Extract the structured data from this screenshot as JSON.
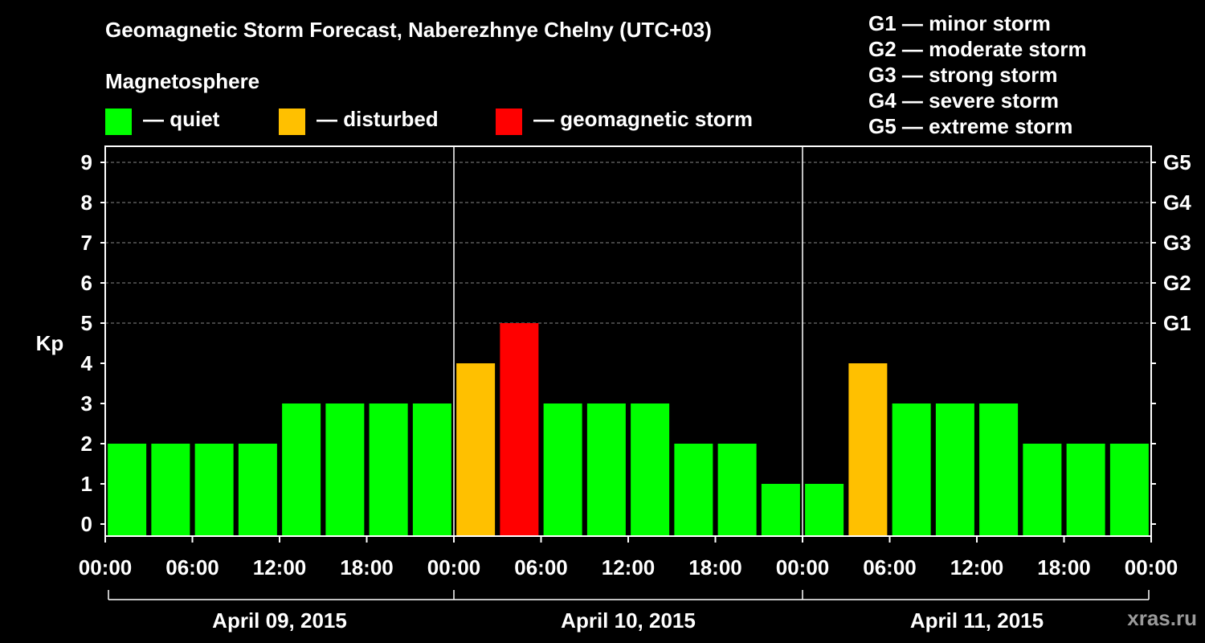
{
  "colors": {
    "quiet": "#00ff00",
    "disturbed": "#ffc000",
    "storm": "#ff0000",
    "background": "#000000",
    "axis": "#ffffff",
    "grid": "#888888",
    "watermark": "#9a9a9a"
  },
  "legend": {
    "title": "Magnetosphere",
    "items": [
      {
        "label": "— quiet",
        "color": "#00ff00"
      },
      {
        "label": "— disturbed",
        "color": "#ffc000"
      },
      {
        "label": "— geomagnetic storm",
        "color": "#ff0000"
      }
    ]
  },
  "storm_scale": [
    "G1 — minor storm",
    "G2 — moderate storm",
    "G3 — strong storm",
    "G4 — severe storm",
    "G5 — extreme storm"
  ],
  "watermark": "xras.ru",
  "chart_data": {
    "type": "bar",
    "title": "Geomagnetic Storm Forecast, Naberezhnye Chelny (UTC+03)",
    "ylabel": "Kp",
    "ylim": [
      0,
      9
    ],
    "yticks": [
      0,
      1,
      2,
      3,
      4,
      5,
      6,
      7,
      8,
      9
    ],
    "y2_labels": [
      {
        "kp": 5,
        "label": "G1"
      },
      {
        "kp": 6,
        "label": "G2"
      },
      {
        "kp": 7,
        "label": "G3"
      },
      {
        "kp": 8,
        "label": "G4"
      },
      {
        "kp": 9,
        "label": "G5"
      }
    ],
    "x_tick_labels": [
      "00:00",
      "06:00",
      "12:00",
      "18:00",
      "00:00",
      "06:00",
      "12:00",
      "18:00",
      "00:00",
      "06:00",
      "12:00",
      "18:00",
      "00:00"
    ],
    "dates": [
      "April 09, 2015",
      "April 10, 2015",
      "April 11, 2015"
    ],
    "interval_hours": 3,
    "values": [
      2,
      2,
      2,
      2,
      3,
      3,
      3,
      3,
      4,
      5,
      3,
      3,
      3,
      2,
      2,
      1,
      1,
      4,
      3,
      3,
      3,
      2,
      2,
      2
    ],
    "categories": [
      "quiet",
      "quiet",
      "quiet",
      "quiet",
      "quiet",
      "quiet",
      "quiet",
      "quiet",
      "disturbed",
      "storm",
      "quiet",
      "quiet",
      "quiet",
      "quiet",
      "quiet",
      "quiet",
      "quiet",
      "disturbed",
      "quiet",
      "quiet",
      "quiet",
      "quiet",
      "quiet",
      "quiet"
    ],
    "grid": "dashed horizontal",
    "legend_position": "top"
  }
}
